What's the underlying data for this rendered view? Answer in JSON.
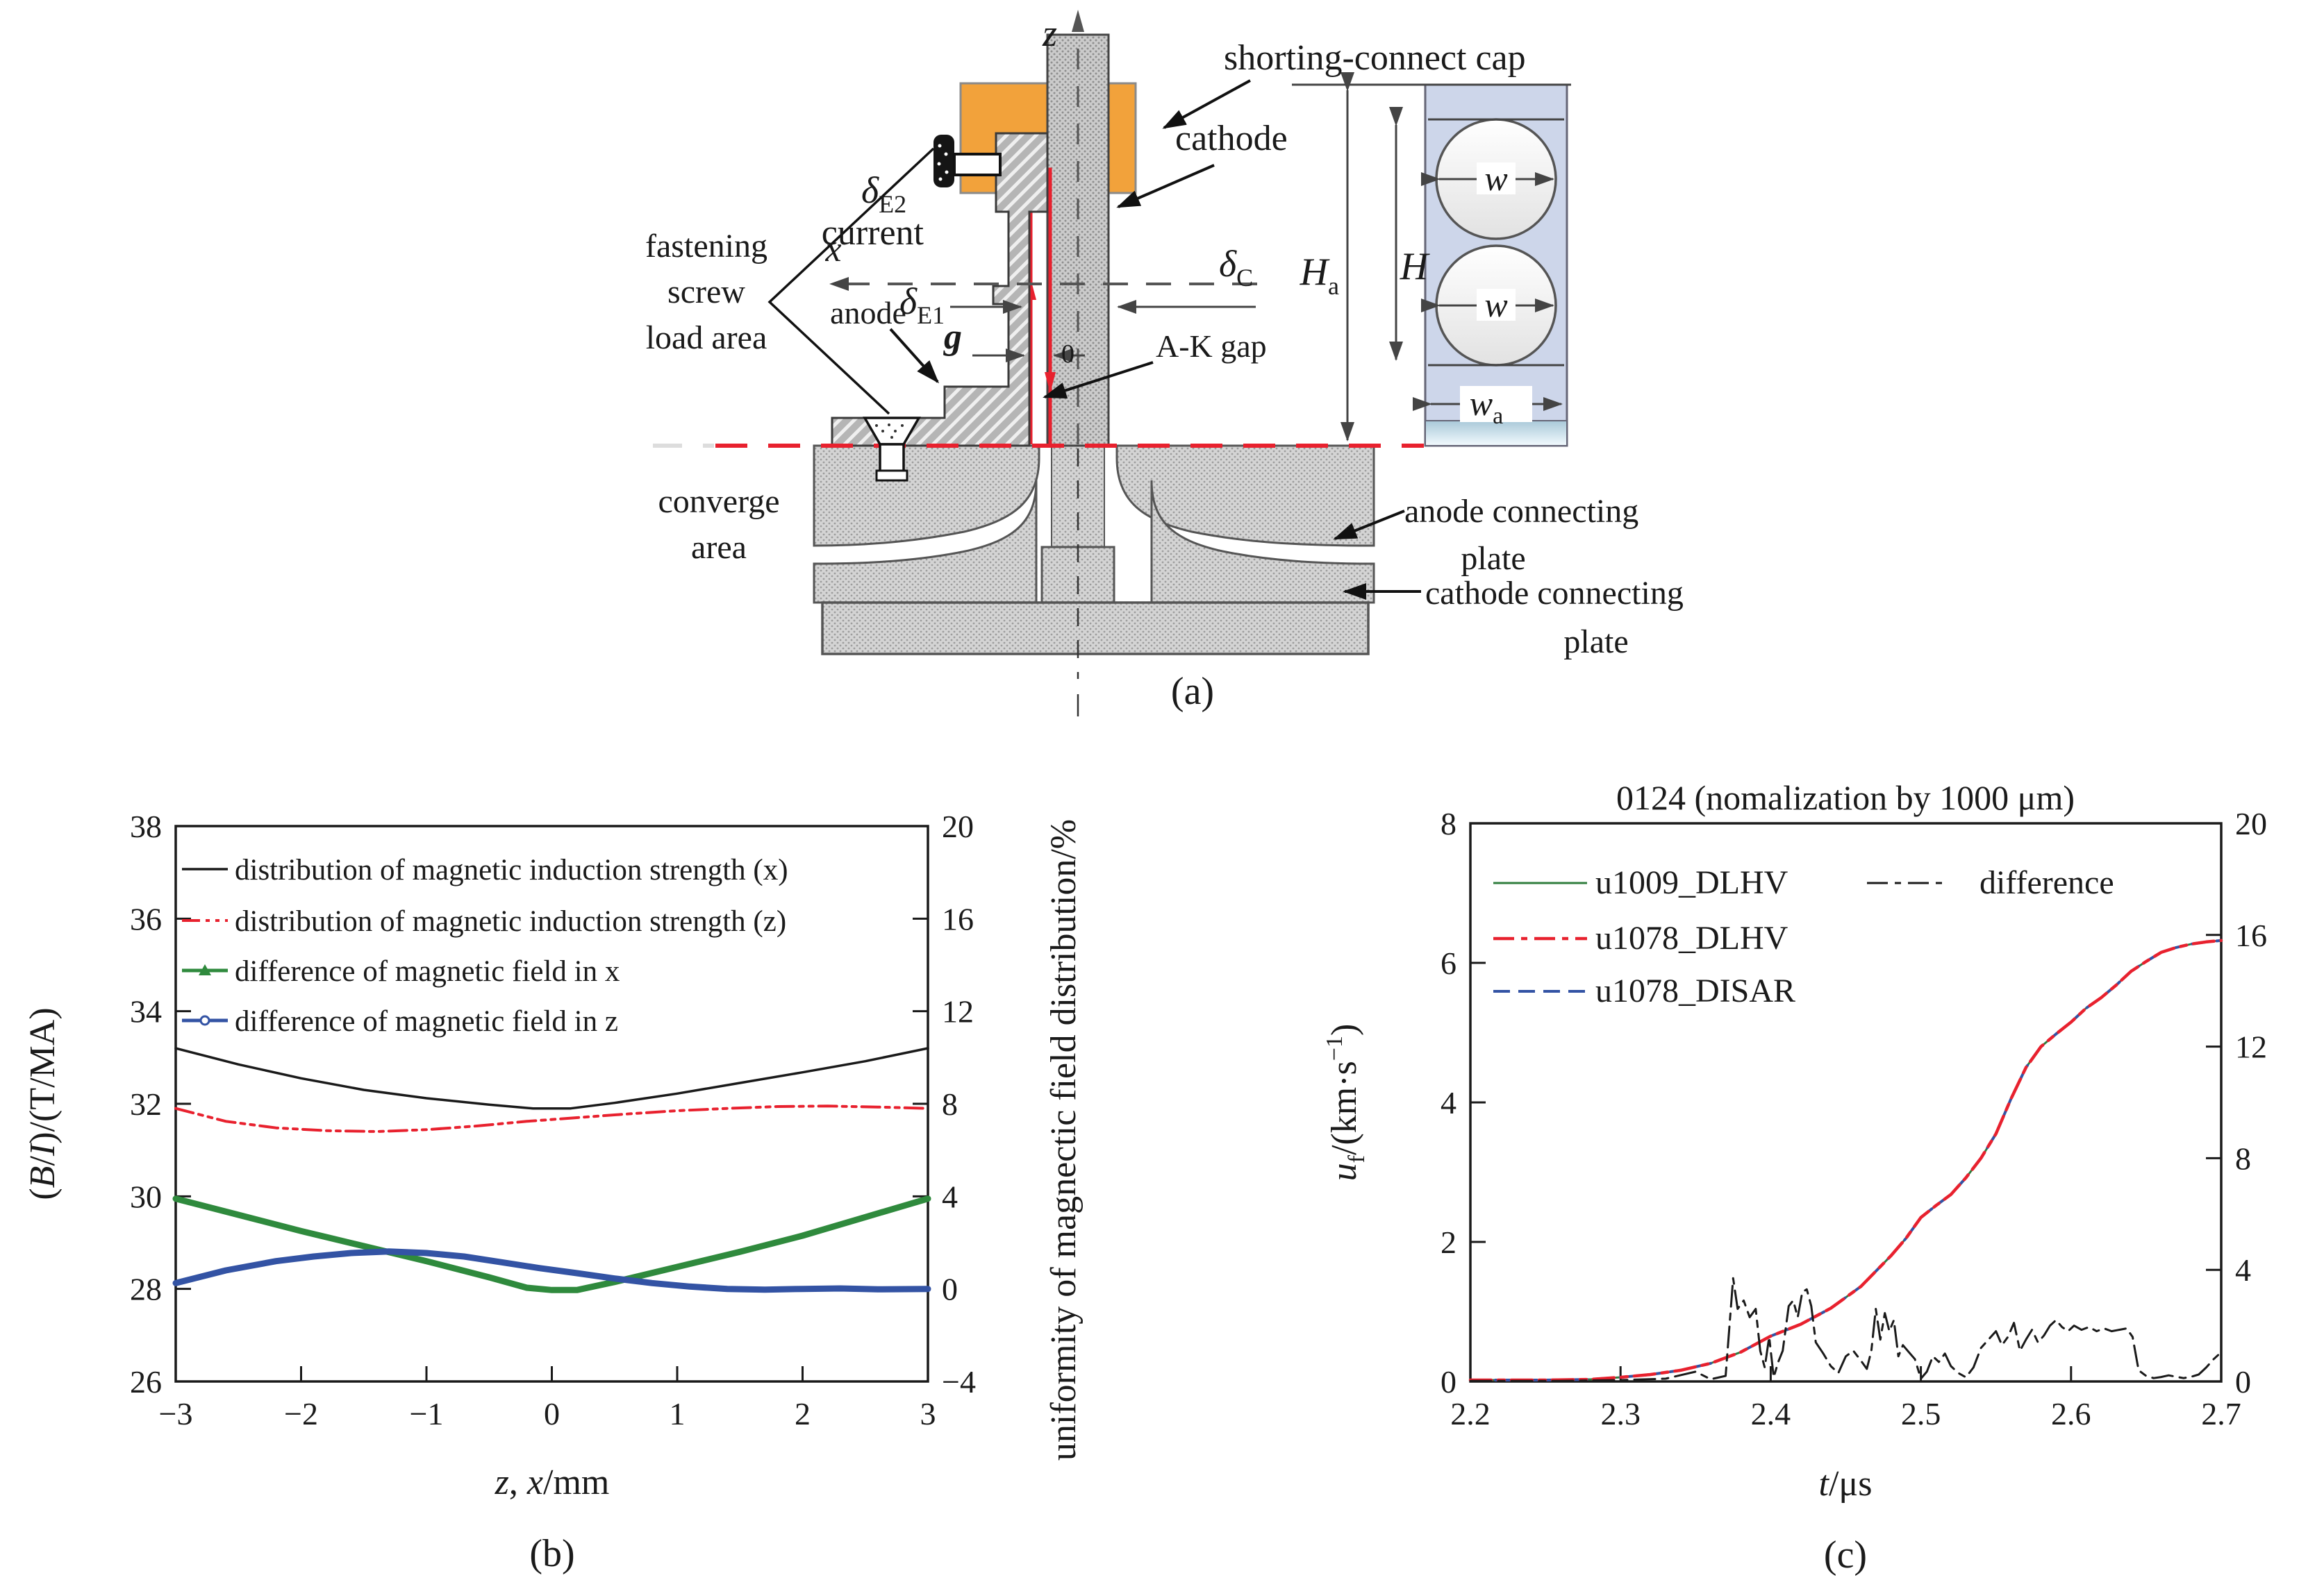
{
  "panel_a": {
    "caption": "(a)",
    "labels": {
      "z": "z",
      "x": "x",
      "zero": "0",
      "g": "g",
      "delta": "δ",
      "sub_e2": "E2",
      "sub_e1": "E1",
      "sub_c": "C",
      "current": "current",
      "shorting_cap": "shorting-connect cap",
      "cathode": "cathode",
      "anode": "anode",
      "ak_gap": "A-K gap",
      "fastening_1": "fastening",
      "fastening_2": "screw",
      "fastening_3": "load area",
      "converge_1": "converge",
      "converge_2": "area",
      "anode_plate_1": "anode connecting",
      "anode_plate_2": "plate",
      "cathode_plate_1": "cathode connecting",
      "cathode_plate_2": "plate",
      "H": "H",
      "sub_a": "a",
      "w": "w"
    },
    "colors": {
      "cap_orange": "#F2A23B",
      "current_red": "#E8212E",
      "insulator_blue": "#CDD6EA"
    }
  },
  "chart_data": [
    {
      "id": "b",
      "type": "line",
      "caption": "(b)",
      "xlabel_parts": {
        "z": "z",
        "comma": ", ",
        "x": "x",
        "unit": "/mm"
      },
      "ylabel_left_parts": {
        "p1": "(",
        "B": "B",
        "p2": "/",
        "I": "I",
        "p3": ")/(T/MA)"
      },
      "ylabel_right": "uniformity of magnectic field distribution/%",
      "xlim": [
        -3,
        3
      ],
      "ylim_left": [
        26,
        38
      ],
      "ylim_right": [
        -4,
        20
      ],
      "grid": false,
      "legend_position": "upper-left",
      "x_ticks": [
        -3,
        -2,
        -1,
        0,
        1,
        2,
        3
      ],
      "x_tick_labels": [
        "−3",
        "−2",
        "−1",
        "0",
        "1",
        "2",
        "3"
      ],
      "left_ticks": [
        26,
        28,
        30,
        32,
        34,
        36,
        38
      ],
      "left_tick_labels": [
        "26",
        "28",
        "30",
        "32",
        "34",
        "36",
        "38"
      ],
      "right_ticks": [
        -4,
        0,
        4,
        8,
        12,
        16,
        20
      ],
      "right_tick_labels": [
        "−4",
        "0",
        "4",
        "8",
        "12",
        "16",
        "20"
      ],
      "series": [
        {
          "name": "distribution of magnetic induction strength (x)",
          "color": "#1a1a1a",
          "style": "solid",
          "width": 3.5,
          "axis": "left",
          "marker": null,
          "curve": "bx"
        },
        {
          "name": "distribution of magnetic induction strength (z)",
          "color": "#E8212E",
          "style": "dashdotdot",
          "width": 4,
          "axis": "left",
          "marker": null,
          "curve": "bz"
        },
        {
          "name": "difference of magnetic field in x",
          "color": "#2F8A3D",
          "style": "solid",
          "width": 9,
          "axis": "right",
          "marker": "triangle",
          "curve": "dx"
        },
        {
          "name": "difference of magnetic field in z",
          "color": "#3353A4",
          "style": "solid",
          "width": 9,
          "axis": "right",
          "marker": "circle",
          "curve": "dz"
        }
      ],
      "curves": {
        "bx": [
          [
            -3,
            33.2
          ],
          [
            -2.5,
            32.85
          ],
          [
            -2,
            32.55
          ],
          [
            -1.5,
            32.3
          ],
          [
            -1,
            32.12
          ],
          [
            -0.5,
            31.98
          ],
          [
            -0.15,
            31.9
          ],
          [
            0.15,
            31.9
          ],
          [
            0.5,
            32.02
          ],
          [
            1,
            32.22
          ],
          [
            1.5,
            32.45
          ],
          [
            2,
            32.68
          ],
          [
            2.5,
            32.92
          ],
          [
            3,
            33.2
          ]
        ],
        "bz": [
          [
            -3,
            31.9
          ],
          [
            -2.6,
            31.62
          ],
          [
            -2.2,
            31.48
          ],
          [
            -1.8,
            31.42
          ],
          [
            -1.4,
            31.4
          ],
          [
            -1,
            31.44
          ],
          [
            -0.6,
            31.52
          ],
          [
            -0.2,
            31.62
          ],
          [
            0.2,
            31.7
          ],
          [
            0.6,
            31.78
          ],
          [
            1,
            31.85
          ],
          [
            1.4,
            31.9
          ],
          [
            1.8,
            31.94
          ],
          [
            2.2,
            31.95
          ],
          [
            2.6,
            31.93
          ],
          [
            3,
            31.9
          ]
        ],
        "dx": [
          [
            -3,
            3.9
          ],
          [
            -2.5,
            3.2
          ],
          [
            -2,
            2.5
          ],
          [
            -1.5,
            1.85
          ],
          [
            -1,
            1.2
          ],
          [
            -0.5,
            0.5
          ],
          [
            -0.2,
            0.05
          ],
          [
            0,
            -0.05
          ],
          [
            0.2,
            -0.05
          ],
          [
            0.5,
            0.3
          ],
          [
            1,
            0.95
          ],
          [
            1.5,
            1.6
          ],
          [
            2,
            2.3
          ],
          [
            2.5,
            3.1
          ],
          [
            3,
            3.9
          ]
        ],
        "dz": [
          [
            -3,
            0.25
          ],
          [
            -2.6,
            0.8
          ],
          [
            -2.2,
            1.2
          ],
          [
            -1.9,
            1.4
          ],
          [
            -1.6,
            1.55
          ],
          [
            -1.3,
            1.62
          ],
          [
            -1,
            1.55
          ],
          [
            -0.7,
            1.4
          ],
          [
            -0.4,
            1.15
          ],
          [
            -0.1,
            0.9
          ],
          [
            0.2,
            0.68
          ],
          [
            0.5,
            0.45
          ],
          [
            0.8,
            0.25
          ],
          [
            1.1,
            0.1
          ],
          [
            1.4,
            0
          ],
          [
            1.7,
            -0.03
          ],
          [
            2,
            0
          ],
          [
            2.3,
            0.02
          ],
          [
            2.6,
            -0.02
          ],
          [
            3,
            0
          ]
        ]
      }
    },
    {
      "id": "c",
      "type": "line",
      "caption": "(c)",
      "title": "0124 (nomalization by 1000 μm)",
      "xlabel_parts": {
        "t": "t",
        "unit": "/μs"
      },
      "ylabel_parts": {
        "u": "u",
        "f": "f",
        "rest": "/(km·s",
        "sup": "−1",
        "end": ")"
      },
      "xlim": [
        2.2,
        2.7
      ],
      "ylim_left": [
        0,
        8
      ],
      "ylim_right": [
        0,
        20
      ],
      "grid": false,
      "legend_position": "upper-left",
      "x_ticks": [
        2.2,
        2.3,
        2.4,
        2.5,
        2.6,
        2.7
      ],
      "x_tick_labels": [
        "2.2",
        "2.3",
        "2.4",
        "2.5",
        "2.6",
        "2.7"
      ],
      "left_ticks": [
        0,
        2,
        4,
        6,
        8
      ],
      "left_tick_labels": [
        "0",
        "2",
        "4",
        "6",
        "8"
      ],
      "right_ticks": [
        0,
        4,
        8,
        12,
        16,
        20
      ],
      "right_tick_labels": [
        "0",
        "4",
        "8",
        "12",
        "16",
        "20"
      ],
      "series": [
        {
          "name": "u1009_DLHV",
          "color": "#2F7D3C",
          "style": "solid",
          "width": 3,
          "axis": "left",
          "marker": null,
          "curve": "main"
        },
        {
          "name": "u1078_DLHV",
          "color": "#E8212E",
          "style": "dashdot",
          "width": 4.5,
          "axis": "left",
          "marker": null,
          "curve": "main"
        },
        {
          "name": "u1078_DISAR",
          "color": "#3353A4",
          "style": "dashed",
          "width": 4,
          "axis": "left",
          "marker": null,
          "curve": "main"
        },
        {
          "name": "difference",
          "color": "#1a1a1a",
          "style": "dashdot",
          "width": 3,
          "axis": "right",
          "marker": null,
          "curve": "diff"
        }
      ],
      "curves": {
        "main": [
          [
            2.2,
            0.02
          ],
          [
            2.25,
            0.02
          ],
          [
            2.28,
            0.03
          ],
          [
            2.3,
            0.06
          ],
          [
            2.32,
            0.1
          ],
          [
            2.34,
            0.16
          ],
          [
            2.36,
            0.26
          ],
          [
            2.38,
            0.42
          ],
          [
            2.4,
            0.65
          ],
          [
            2.42,
            0.82
          ],
          [
            2.44,
            1.05
          ],
          [
            2.46,
            1.36
          ],
          [
            2.48,
            1.8
          ],
          [
            2.49,
            2.05
          ],
          [
            2.5,
            2.35
          ],
          [
            2.51,
            2.52
          ],
          [
            2.52,
            2.68
          ],
          [
            2.53,
            2.92
          ],
          [
            2.54,
            3.2
          ],
          [
            2.55,
            3.55
          ],
          [
            2.56,
            4.05
          ],
          [
            2.57,
            4.5
          ],
          [
            2.58,
            4.8
          ],
          [
            2.59,
            4.98
          ],
          [
            2.6,
            5.15
          ],
          [
            2.61,
            5.35
          ],
          [
            2.62,
            5.5
          ],
          [
            2.63,
            5.68
          ],
          [
            2.64,
            5.88
          ],
          [
            2.65,
            6.02
          ],
          [
            2.66,
            6.15
          ],
          [
            2.67,
            6.22
          ],
          [
            2.68,
            6.27
          ],
          [
            2.69,
            6.3
          ],
          [
            2.7,
            6.32
          ]
        ],
        "diff": [
          [
            2.2,
            0.02
          ],
          [
            2.26,
            0.02
          ],
          [
            2.3,
            0.05
          ],
          [
            2.33,
            0.1
          ],
          [
            2.35,
            0.35
          ],
          [
            2.36,
            0.08
          ],
          [
            2.37,
            0.2
          ],
          [
            2.375,
            3.7
          ],
          [
            2.378,
            2.6
          ],
          [
            2.382,
            2.9
          ],
          [
            2.386,
            2.3
          ],
          [
            2.39,
            2.6
          ],
          [
            2.393,
            1.1
          ],
          [
            2.396,
            0.5
          ],
          [
            2.399,
            1.6
          ],
          [
            2.402,
            0.15
          ],
          [
            2.405,
            0.7
          ],
          [
            2.408,
            1.1
          ],
          [
            2.412,
            2.7
          ],
          [
            2.415,
            2.9
          ],
          [
            2.418,
            2.3
          ],
          [
            2.421,
            3.2
          ],
          [
            2.424,
            3.3
          ],
          [
            2.427,
            2.7
          ],
          [
            2.43,
            1.4
          ],
          [
            2.435,
            1.0
          ],
          [
            2.44,
            0.55
          ],
          [
            2.445,
            0.3
          ],
          [
            2.45,
            0.9
          ],
          [
            2.455,
            1.1
          ],
          [
            2.46,
            0.75
          ],
          [
            2.464,
            0.45
          ],
          [
            2.467,
            1.1
          ],
          [
            2.47,
            2.6
          ],
          [
            2.473,
            1.5
          ],
          [
            2.476,
            2.45
          ],
          [
            2.479,
            1.8
          ],
          [
            2.482,
            2.2
          ],
          [
            2.485,
            0.9
          ],
          [
            2.488,
            1.3
          ],
          [
            2.492,
            1.05
          ],
          [
            2.496,
            0.8
          ],
          [
            2.5,
            0.1
          ],
          [
            2.504,
            0.35
          ],
          [
            2.508,
            0.9
          ],
          [
            2.512,
            0.7
          ],
          [
            2.516,
            1.0
          ],
          [
            2.52,
            0.55
          ],
          [
            2.525,
            0.3
          ],
          [
            2.53,
            0.15
          ],
          [
            2.535,
            0.5
          ],
          [
            2.54,
            1.2
          ],
          [
            2.545,
            1.5
          ],
          [
            2.55,
            1.8
          ],
          [
            2.554,
            1.3
          ],
          [
            2.558,
            1.6
          ],
          [
            2.562,
            2.1
          ],
          [
            2.566,
            1.1
          ],
          [
            2.57,
            1.5
          ],
          [
            2.574,
            1.85
          ],
          [
            2.578,
            1.4
          ],
          [
            2.582,
            1.65
          ],
          [
            2.586,
            2.0
          ],
          [
            2.59,
            2.2
          ],
          [
            2.594,
            1.95
          ],
          [
            2.598,
            1.8
          ],
          [
            2.602,
            2.0
          ],
          [
            2.607,
            1.85
          ],
          [
            2.612,
            1.95
          ],
          [
            2.617,
            1.8
          ],
          [
            2.622,
            1.9
          ],
          [
            2.627,
            1.8
          ],
          [
            2.632,
            1.85
          ],
          [
            2.637,
            1.9
          ],
          [
            2.641,
            1.6
          ],
          [
            2.645,
            0.4
          ],
          [
            2.65,
            0.2
          ],
          [
            2.655,
            0.12
          ],
          [
            2.66,
            0.16
          ],
          [
            2.665,
            0.22
          ],
          [
            2.67,
            0.17
          ],
          [
            2.675,
            0.12
          ],
          [
            2.68,
            0.17
          ],
          [
            2.685,
            0.25
          ],
          [
            2.69,
            0.5
          ],
          [
            2.695,
            0.8
          ],
          [
            2.7,
            1.05
          ]
        ]
      }
    }
  ]
}
